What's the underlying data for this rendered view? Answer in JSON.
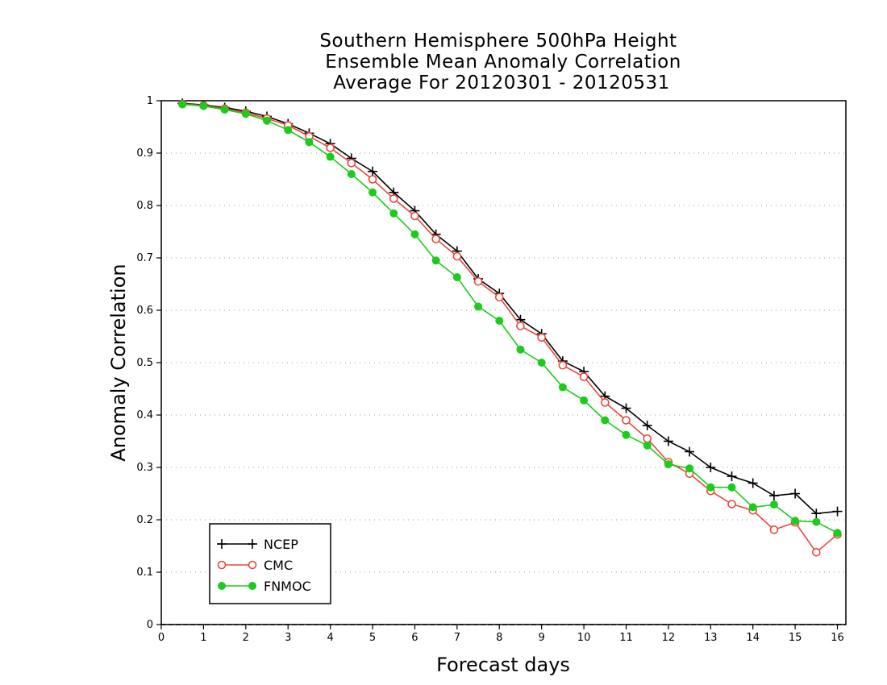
{
  "chart_data": {
    "type": "line",
    "title_lines": [
      "Southern Hemisphere 500hPa Height",
      "Ensemble Mean Anomaly Correlation",
      "Average For 20120301 - 20120531"
    ],
    "xlabel": "Forecast days",
    "ylabel": "Anomaly Correlation",
    "xlim": [
      0,
      16.2
    ],
    "ylim": [
      0,
      1
    ],
    "x_ticks": [
      "0",
      "1",
      "2",
      "3",
      "4",
      "5",
      "6",
      "7",
      "8",
      "9",
      "10",
      "11",
      "12",
      "13",
      "14",
      "15",
      "16"
    ],
    "y_ticks": [
      "0",
      "0.1",
      "0.2",
      "0.3",
      "0.4",
      "0.5",
      "0.6",
      "0.7",
      "0.8",
      "0.9",
      "1"
    ],
    "grid": "horizontal dotted",
    "legend_position": "bottom-left",
    "x": [
      0.5,
      1,
      1.5,
      2,
      2.5,
      3,
      3.5,
      4,
      4.5,
      5,
      5.5,
      6,
      6.5,
      7,
      7.5,
      8,
      8.5,
      9,
      9.5,
      10,
      10.5,
      11,
      11.5,
      12,
      12.5,
      13,
      13.5,
      14,
      14.5,
      15,
      15.5,
      16
    ],
    "series": [
      {
        "name": "NCEP",
        "color": "#000000",
        "marker": "plus",
        "values": [
          0.995,
          0.992,
          0.987,
          0.98,
          0.97,
          0.956,
          0.938,
          0.918,
          0.89,
          0.865,
          0.825,
          0.79,
          0.745,
          0.713,
          0.66,
          0.632,
          0.582,
          0.555,
          0.503,
          0.483,
          0.436,
          0.413,
          0.38,
          0.35,
          0.33,
          0.3,
          0.283,
          0.27,
          0.246,
          0.25,
          0.212,
          0.216
        ]
      },
      {
        "name": "CMC",
        "color": "#e8483c",
        "marker": "open-circle",
        "values": [
          0.994,
          0.991,
          0.985,
          0.977,
          0.966,
          0.953,
          0.932,
          0.91,
          0.881,
          0.85,
          0.813,
          0.78,
          0.736,
          0.703,
          0.655,
          0.625,
          0.57,
          0.548,
          0.495,
          0.473,
          0.424,
          0.39,
          0.355,
          0.31,
          0.288,
          0.255,
          0.23,
          0.218,
          0.181,
          0.195,
          0.138,
          0.172
        ]
      },
      {
        "name": "FNMOC",
        "color": "#1ccc1c",
        "marker": "filled-circle",
        "values": [
          0.993,
          0.99,
          0.983,
          0.975,
          0.962,
          0.944,
          0.921,
          0.893,
          0.86,
          0.825,
          0.785,
          0.745,
          0.695,
          0.663,
          0.607,
          0.58,
          0.525,
          0.5,
          0.453,
          0.428,
          0.39,
          0.362,
          0.342,
          0.306,
          0.298,
          0.262,
          0.262,
          0.224,
          0.229,
          0.198,
          0.196,
          0.175
        ]
      }
    ]
  }
}
